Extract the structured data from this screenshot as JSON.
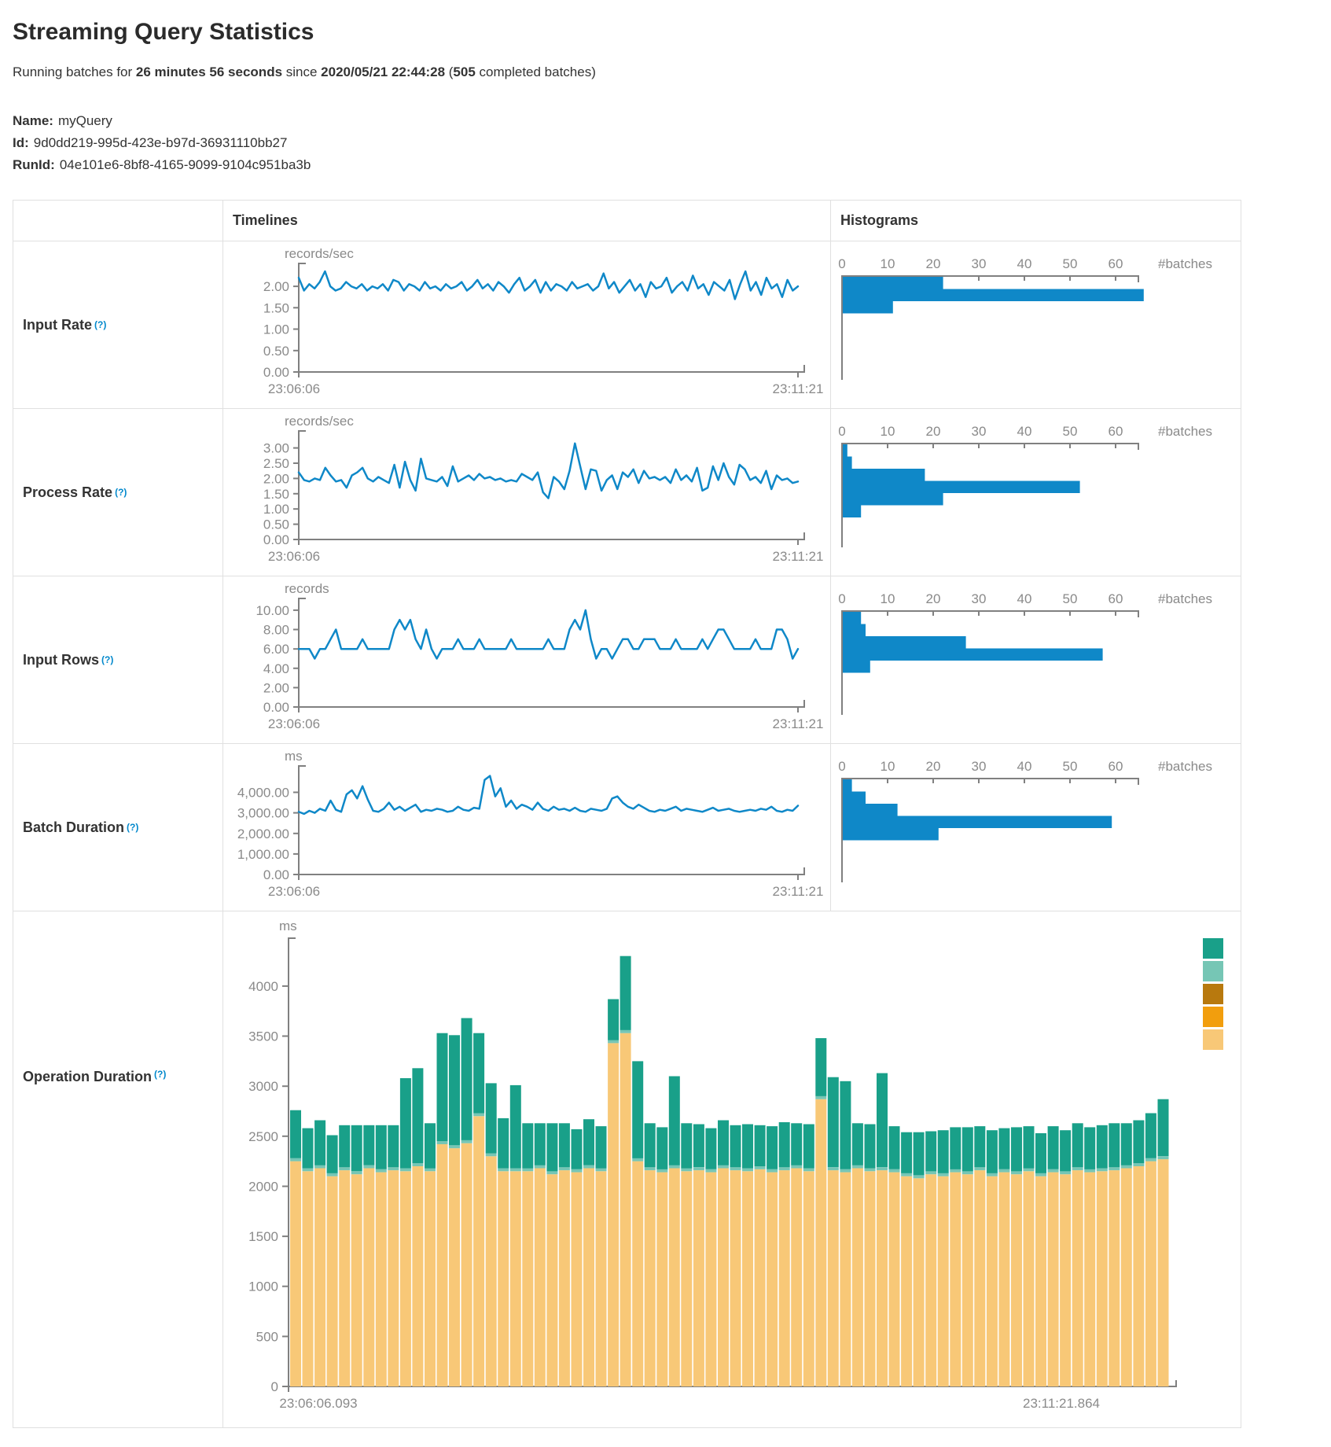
{
  "header": {
    "title": "Streaming Query Statistics",
    "running_prefix": "Running batches for ",
    "duration": "26 minutes 56 seconds",
    "since_text": " since ",
    "start_time": "2020/05/21 22:44:28",
    "batches_open": " (",
    "completed_batches": "505",
    "batches_suffix": " completed batches)",
    "name_label": "Name:",
    "name_value": "myQuery",
    "id_label": "Id:",
    "id_value": "9d0dd219-995d-423e-b97d-36931110bb27",
    "runid_label": "RunId:",
    "runid_value": "04e101e6-8bf8-4165-9099-9104c951ba3b"
  },
  "table": {
    "timelines_header": "Timelines",
    "histograms_header": "Histograms",
    "rows": [
      {
        "label": "Input Rate",
        "help": "(?)"
      },
      {
        "label": "Process Rate",
        "help": "(?)"
      },
      {
        "label": "Input Rows",
        "help": "(?)"
      },
      {
        "label": "Batch Duration",
        "help": "(?)"
      },
      {
        "label": "Operation Duration",
        "help": "(?)"
      }
    ]
  },
  "colors": {
    "line_blue": "#0f88c8",
    "hist_blue": "#0f88c8",
    "axis_gray": "#808080",
    "tick_text": "#8a8a8a"
  },
  "chart_data": [
    {
      "id": "input-rate-timeline",
      "row": "Input Rate",
      "type": "line",
      "unit": "records/sec",
      "x_start_label": "23:06:06",
      "x_end_label": "23:11:21",
      "ylim": [
        0,
        2.35
      ],
      "ytick_values": [
        0,
        0.5,
        1,
        1.5,
        2
      ],
      "yticks": [
        "0.00",
        "0.50",
        "1.00",
        "1.50",
        "2.00"
      ],
      "values": [
        2.2,
        1.9,
        2.05,
        1.95,
        2.1,
        2.35,
        2.0,
        1.9,
        1.95,
        2.1,
        2.0,
        1.95,
        2.05,
        1.9,
        2.0,
        1.95,
        2.05,
        1.9,
        2.15,
        2.1,
        1.9,
        2.05,
        2.0,
        1.9,
        2.1,
        1.95,
        2.0,
        1.9,
        2.05,
        1.95,
        2.0,
        2.1,
        1.9,
        2.0,
        2.15,
        1.95,
        2.05,
        1.9,
        2.1,
        2.0,
        1.85,
        2.05,
        2.2,
        1.9,
        2.0,
        2.15,
        1.85,
        2.1,
        1.9,
        2.05,
        2.0,
        1.9,
        2.1,
        1.95,
        2.0,
        2.05,
        1.9,
        2.0,
        2.3,
        1.95,
        2.1,
        1.85,
        2.0,
        2.15,
        1.9,
        2.05,
        1.75,
        2.1,
        1.95,
        2.0,
        2.2,
        1.85,
        2.0,
        2.1,
        1.9,
        2.25,
        1.95,
        2.05,
        1.8,
        2.1,
        2.0,
        1.9,
        2.15,
        1.7,
        2.05,
        2.35,
        1.9,
        2.1,
        1.8,
        2.2,
        1.95,
        2.05,
        1.75,
        2.15,
        1.9,
        2.0
      ]
    },
    {
      "id": "input-rate-histogram",
      "row": "Input Rate",
      "type": "bar",
      "orientation": "horizontal",
      "xlabel": "#batches",
      "xticks": [
        0,
        10,
        20,
        30,
        40,
        50,
        60
      ],
      "axis_max": 65,
      "values": [
        22,
        66,
        11
      ]
    },
    {
      "id": "process-rate-timeline",
      "row": "Process Rate",
      "type": "line",
      "unit": "records/sec",
      "x_start_label": "23:06:06",
      "x_end_label": "23:11:21",
      "ylim": [
        0,
        3.3
      ],
      "ytick_values": [
        0,
        0.5,
        1,
        1.5,
        2,
        2.5,
        3
      ],
      "yticks": [
        "0.00",
        "0.50",
        "1.00",
        "1.50",
        "2.00",
        "2.50",
        "3.00"
      ],
      "values": [
        2.2,
        1.95,
        1.9,
        2.0,
        1.95,
        2.35,
        2.1,
        1.9,
        1.95,
        1.7,
        2.1,
        2.2,
        2.35,
        2.0,
        1.9,
        2.05,
        1.95,
        1.85,
        2.45,
        1.7,
        2.55,
        1.95,
        1.6,
        2.65,
        2.0,
        1.95,
        1.9,
        2.05,
        1.75,
        2.4,
        1.9,
        2.0,
        2.1,
        1.95,
        2.15,
        2.0,
        2.05,
        1.95,
        2.0,
        1.9,
        1.95,
        1.9,
        2.15,
        2.05,
        1.95,
        2.2,
        1.55,
        1.35,
        2.05,
        1.9,
        1.65,
        2.25,
        3.15,
        2.4,
        1.65,
        2.3,
        2.25,
        1.6,
        1.95,
        2.1,
        1.65,
        2.2,
        2.05,
        2.3,
        1.85,
        2.25,
        2.0,
        2.05,
        1.95,
        2.05,
        1.85,
        2.3,
        1.95,
        2.1,
        1.9,
        2.35,
        1.6,
        1.7,
        2.4,
        1.95,
        2.5,
        2.05,
        1.8,
        2.45,
        2.3,
        1.95,
        2.05,
        1.85,
        2.25,
        1.65,
        2.1,
        1.95,
        2.0,
        1.85,
        1.9
      ]
    },
    {
      "id": "process-rate-histogram",
      "row": "Process Rate",
      "type": "bar",
      "orientation": "horizontal",
      "xlabel": "#batches",
      "xticks": [
        0,
        10,
        20,
        30,
        40,
        50,
        60
      ],
      "axis_max": 65,
      "values": [
        1,
        2,
        18,
        52,
        22,
        4
      ]
    },
    {
      "id": "input-rows-timeline",
      "row": "Input Rows",
      "type": "line",
      "unit": "records",
      "x_start_label": "23:06:06",
      "x_end_label": "23:11:21",
      "ylim": [
        0,
        10.4
      ],
      "ytick_values": [
        0,
        2,
        4,
        6,
        8,
        10
      ],
      "yticks": [
        "0.00",
        "2.00",
        "4.00",
        "6.00",
        "8.00",
        "10.00"
      ],
      "values": [
        6,
        6,
        6,
        5,
        6,
        6,
        7,
        8,
        6,
        6,
        6,
        6,
        7,
        6,
        6,
        6,
        6,
        6,
        8,
        9,
        8,
        9,
        7,
        6,
        8,
        6,
        5,
        6,
        6,
        6,
        7,
        6,
        6,
        6,
        7,
        6,
        6,
        6,
        6,
        6,
        7,
        6,
        6,
        6,
        6,
        6,
        6,
        7,
        6,
        6,
        6,
        8,
        9,
        8,
        10,
        7,
        5,
        6,
        6,
        5,
        6,
        7,
        7,
        6,
        6,
        7,
        7,
        7,
        6,
        6,
        6,
        7,
        6,
        6,
        6,
        6,
        7,
        6,
        7,
        8,
        8,
        7,
        6,
        6,
        6,
        6,
        7,
        6,
        6,
        6,
        8,
        8,
        7,
        5,
        6
      ]
    },
    {
      "id": "input-rows-histogram",
      "row": "Input Rows",
      "type": "bar",
      "orientation": "horizontal",
      "xlabel": "#batches",
      "xticks": [
        0,
        10,
        20,
        30,
        40,
        50,
        60
      ],
      "axis_max": 65,
      "values": [
        4,
        5,
        27,
        57,
        6
      ]
    },
    {
      "id": "batch-duration-timeline",
      "row": "Batch Duration",
      "type": "line",
      "unit": "ms",
      "x_start_label": "23:06:06",
      "x_end_label": "23:11:21",
      "ylim": [
        0,
        4900
      ],
      "ytick_values": [
        0,
        1000,
        2000,
        3000,
        4000
      ],
      "yticks": [
        "0.00",
        "1,000.00",
        "2,000.00",
        "3,000.00",
        "4,000.00"
      ],
      "values": [
        3050,
        2950,
        3100,
        3000,
        3200,
        3100,
        3600,
        3150,
        3050,
        3900,
        4100,
        3700,
        4300,
        3650,
        3100,
        3050,
        3200,
        3500,
        3150,
        3300,
        3100,
        3250,
        3400,
        3050,
        3150,
        3100,
        3200,
        3150,
        3050,
        3100,
        3300,
        3150,
        3100,
        3250,
        3200,
        4600,
        4800,
        3800,
        4200,
        3300,
        3600,
        3200,
        3400,
        3300,
        3150,
        3500,
        3200,
        3100,
        3300,
        3150,
        3200,
        3100,
        3250,
        3100,
        3050,
        3200,
        3150,
        3100,
        3200,
        3700,
        3800,
        3500,
        3300,
        3200,
        3400,
        3250,
        3100,
        3050,
        3150,
        3100,
        3200,
        3300,
        3100,
        3200,
        3150,
        3100,
        3050,
        3150,
        3250,
        3100,
        3150,
        3200,
        3100,
        3050,
        3100,
        3150,
        3100,
        3200,
        3150,
        3300,
        3100,
        3050,
        3150,
        3100,
        3350
      ]
    },
    {
      "id": "batch-duration-histogram",
      "row": "Batch Duration",
      "type": "bar",
      "orientation": "horizontal",
      "xlabel": "#batches",
      "xticks": [
        0,
        10,
        20,
        30,
        40,
        50,
        60
      ],
      "axis_max": 65,
      "values": [
        2,
        5,
        12,
        59,
        21
      ]
    },
    {
      "id": "operation-duration",
      "row": "Operation Duration",
      "type": "stacked-bar",
      "unit": "ms",
      "x_start_label": "23:06:06.093",
      "x_end_label": "23:11:21.864",
      "ylim": [
        0,
        4400
      ],
      "ytick_values": [
        0,
        500,
        1000,
        1500,
        2000,
        2500,
        3000,
        3500,
        4000
      ],
      "yticks": [
        "0",
        "500",
        "1000",
        "1500",
        "2000",
        "2500",
        "3000",
        "3500",
        "4000"
      ],
      "legend_order_top_to_bottom": [
        "op-teal",
        "op-light-teal",
        "op-brown",
        "op-orange",
        "op-tan"
      ],
      "stack_order_bottom_to_top": [
        "op-tan",
        "op-orange",
        "op-brown",
        "op-light-teal",
        "op-teal"
      ],
      "series": [
        {
          "name": "op-teal",
          "color": "#19a089",
          "values": [
            480,
            400,
            450,
            380,
            420,
            460,
            400,
            440,
            420,
            900,
            950,
            450,
            1080,
            1100,
            1220,
            800,
            700,
            500,
            830,
            450,
            420,
            480,
            440,
            400,
            460,
            420,
            410,
            740,
            970,
            440,
            420,
            890,
            450,
            430,
            410,
            450,
            420,
            440,
            410,
            430,
            450,
            420,
            440,
            580,
            900,
            880,
            420,
            440,
            940,
            430,
            410,
            430,
            400,
            430,
            420,
            440,
            410,
            430,
            410,
            440,
            420,
            400,
            430,
            410,
            440,
            420,
            430,
            440,
            420,
            430,
            450,
            570
          ]
        },
        {
          "name": "op-light-teal",
          "color": "#76c6b5",
          "constant": 30
        },
        {
          "name": "op-brown",
          "color": "#b8790e",
          "constant": 0
        },
        {
          "name": "op-orange",
          "color": "#f29e0d",
          "constant": 0
        },
        {
          "name": "op-tan",
          "color": "#f8c877",
          "values": [
            2250,
            2150,
            2180,
            2100,
            2160,
            2120,
            2180,
            2140,
            2160,
            2150,
            2200,
            2150,
            2420,
            2380,
            2430,
            2700,
            2300,
            2150,
            2150,
            2150,
            2180,
            2120,
            2160,
            2140,
            2180,
            2150,
            3430,
            3530,
            2250,
            2160,
            2140,
            2180,
            2150,
            2160,
            2140,
            2180,
            2160,
            2150,
            2170,
            2140,
            2160,
            2180,
            2150,
            2870,
            2160,
            2140,
            2180,
            2150,
            2160,
            2140,
            2100,
            2080,
            2120,
            2100,
            2140,
            2120,
            2160,
            2100,
            2140,
            2120,
            2150,
            2100,
            2140,
            2120,
            2160,
            2140,
            2150,
            2160,
            2180,
            2200,
            2250,
            2270
          ]
        }
      ]
    }
  ]
}
